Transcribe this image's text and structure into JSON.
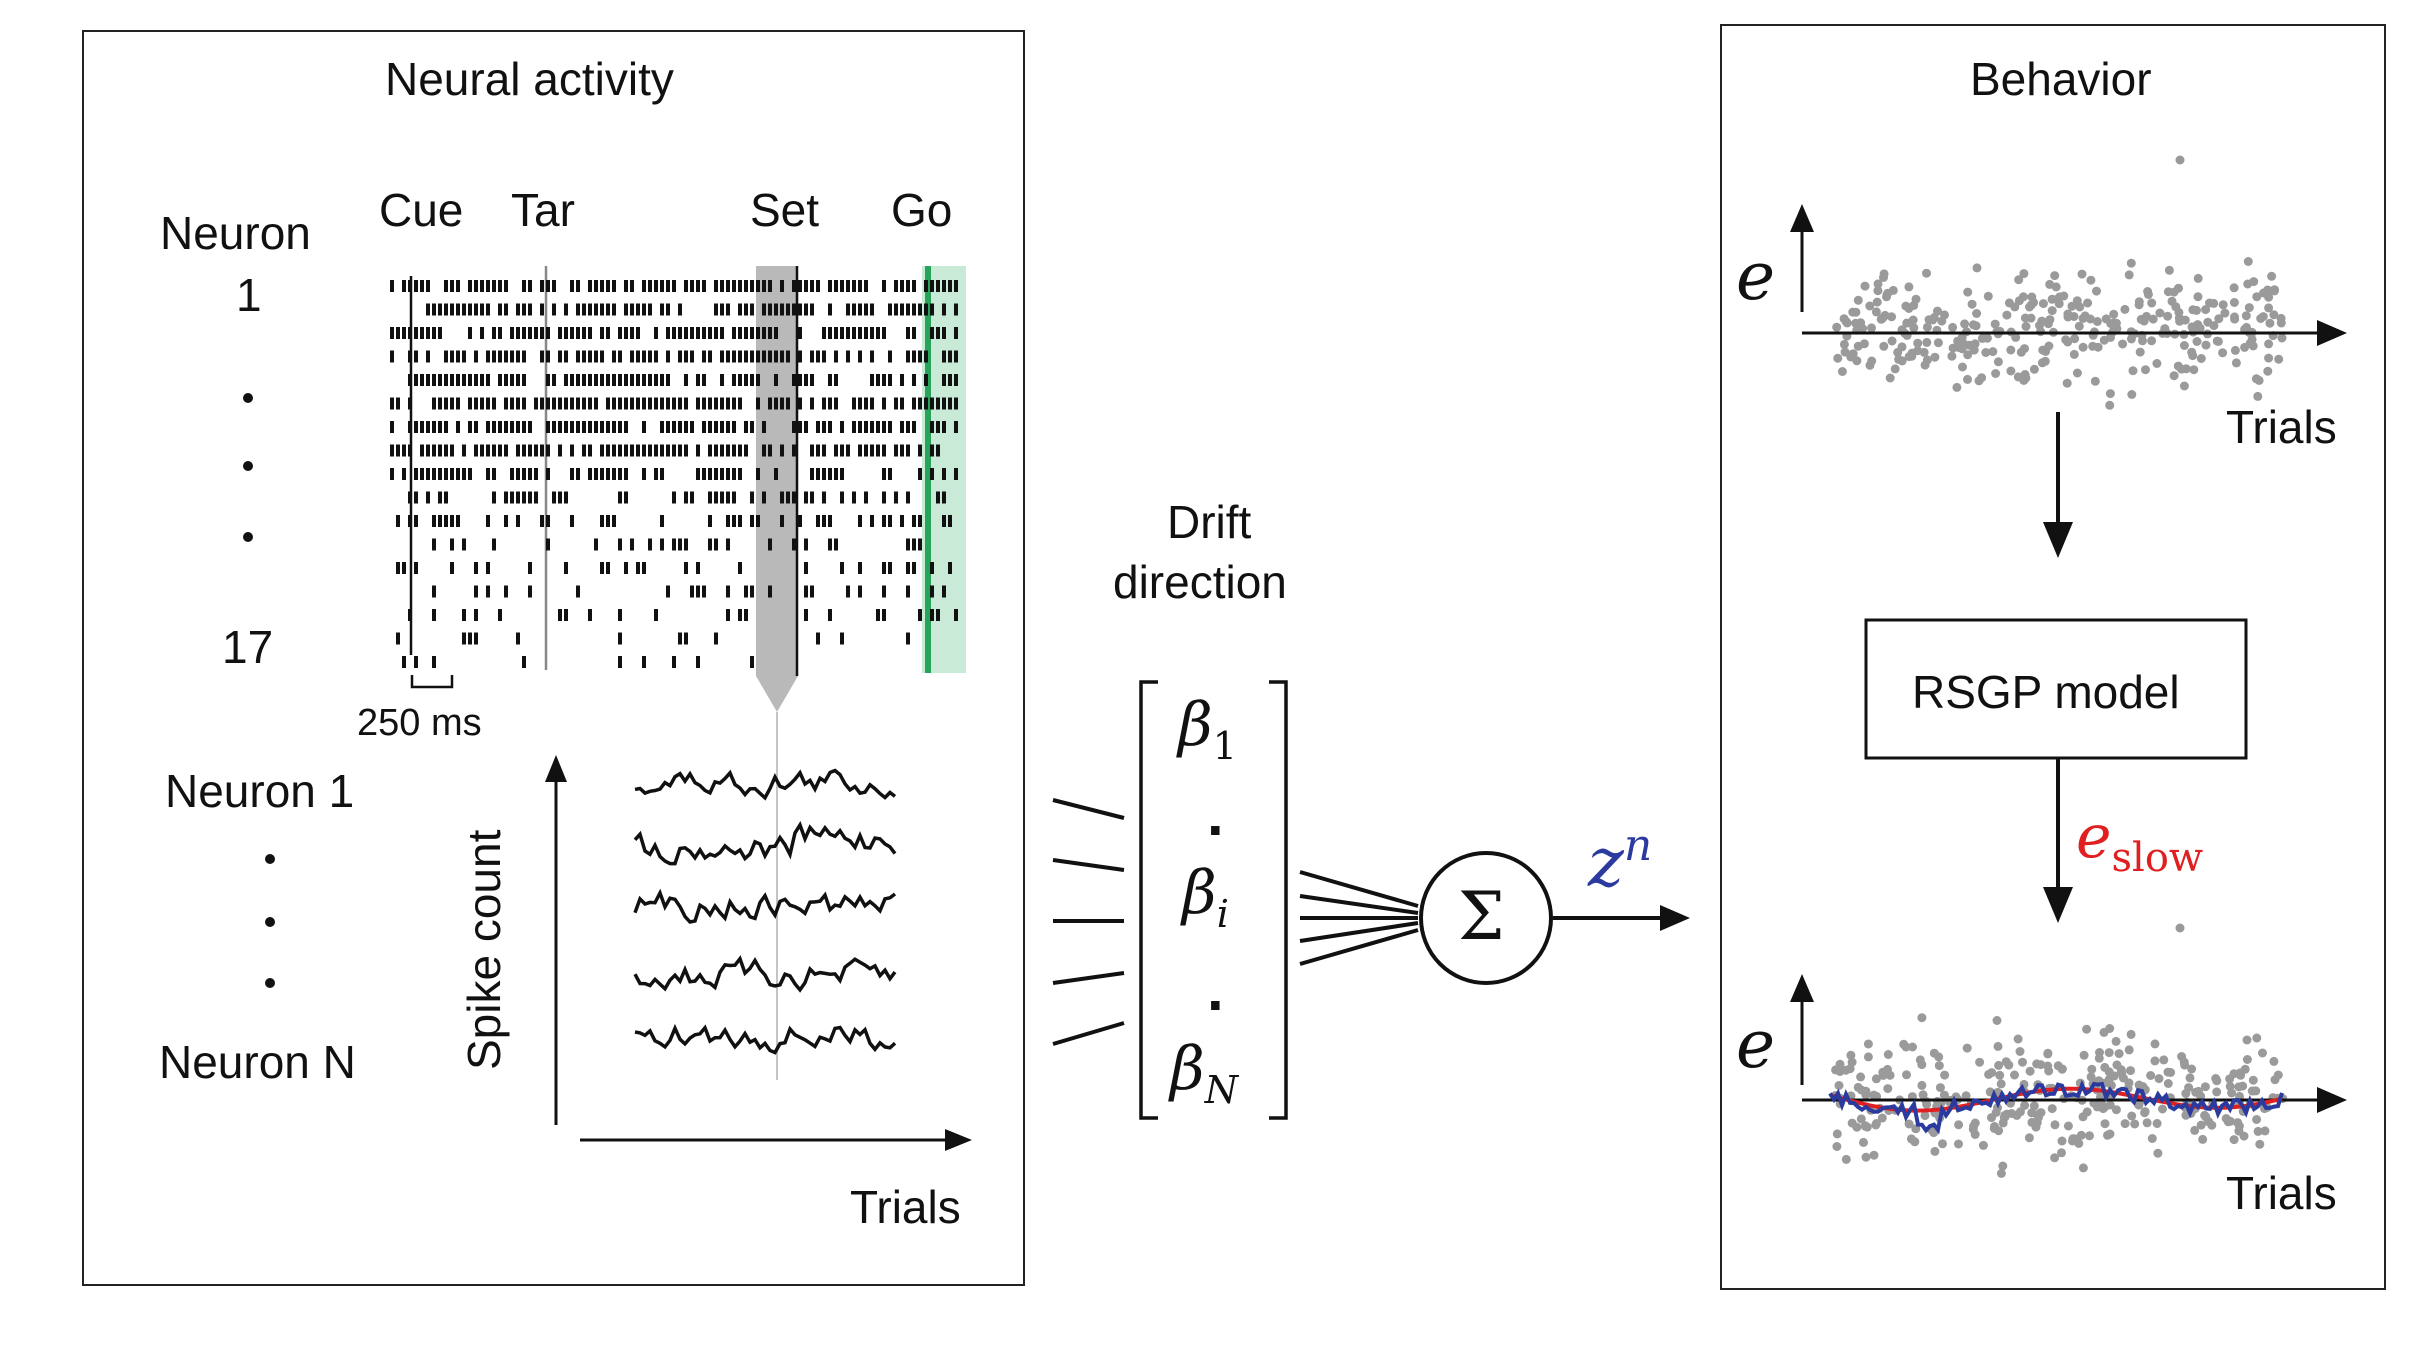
{
  "left_panel": {
    "title": "Neural activity",
    "neuron_label": "Neuron",
    "neuron_first": "1",
    "neuron_last": "17",
    "events": [
      "Cue",
      "Tar",
      "Set",
      "Go"
    ],
    "scale_bar": "250 ms",
    "list_first": "Neuron 1",
    "list_last": "Neuron N",
    "y_axis_label": "Spike count",
    "x_axis_label": "Trials"
  },
  "middle": {
    "drift_label_line1": "Drift",
    "drift_label_line2": "direction",
    "beta_first": "β",
    "beta_first_sub": "1",
    "beta_mid": "β",
    "beta_mid_sub": "i",
    "beta_last": "β",
    "beta_last_sub": "N",
    "dot": ".",
    "sum_symbol": "Σ",
    "output": "z",
    "output_sup": "n"
  },
  "right_panel": {
    "title": "Behavior",
    "y_label": "e",
    "x_label_top": "Trials",
    "model_box": "RSGP model",
    "slow_label": "e",
    "slow_sub": "slow",
    "x_label_bottom": "Trials"
  },
  "colors": {
    "z_blue": "#2b3a9e",
    "e_slow_red": "#e02020",
    "go_green": "#27a35a",
    "go_shade": "#c8ead6",
    "set_shade": "#b9b9b9",
    "scatter_gray": "#9a9a9a"
  }
}
